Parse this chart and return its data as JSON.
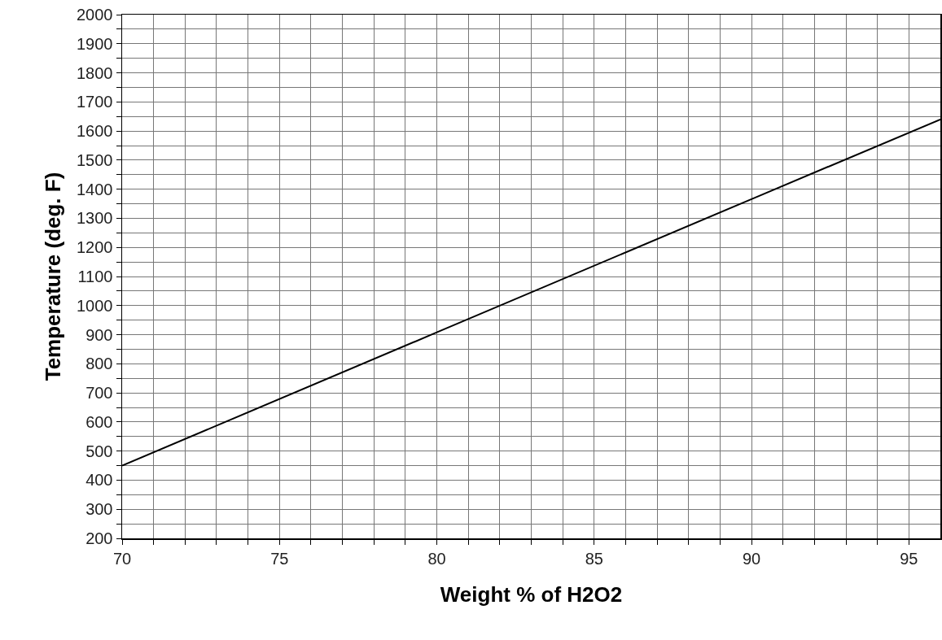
{
  "chart_data": {
    "type": "line",
    "xlabel": "Weight % of H2O2",
    "ylabel": "Temperature (deg. F)",
    "x": [
      70,
      80,
      90,
      96
    ],
    "series": [
      {
        "color": "#000000",
        "values": [
          450,
          908,
          1366,
          1640
        ]
      }
    ],
    "xlim": [
      70,
      96
    ],
    "xticks": [
      70,
      {
        "value": 71,
        "label": null
      },
      {
        "value": 72,
        "label": null
      },
      {
        "value": 73,
        "label": null
      },
      {
        "value": 74,
        "label": null
      },
      75,
      {
        "value": 76,
        "label": null
      },
      {
        "value": 77,
        "label": null
      },
      {
        "value": 78,
        "label": null
      },
      {
        "value": 79,
        "label": null
      },
      80,
      {
        "value": 81,
        "label": null
      },
      {
        "value": 82,
        "label": null
      },
      {
        "value": 83,
        "label": null
      },
      {
        "value": 84,
        "label": null
      },
      85,
      {
        "value": 86,
        "label": null
      },
      {
        "value": 87,
        "label": null
      },
      {
        "value": 88,
        "label": null
      },
      {
        "value": 89,
        "label": null
      },
      90,
      {
        "value": 91,
        "label": null
      },
      {
        "value": 92,
        "label": null
      },
      {
        "value": 93,
        "label": null
      },
      {
        "value": 94,
        "label": null
      },
      95
    ],
    "ylim": [
      200,
      2000
    ],
    "yticks": [
      200,
      {
        "value": 250,
        "label": null
      },
      300,
      {
        "value": 350,
        "label": null
      },
      400,
      {
        "value": 450,
        "label": null
      },
      500,
      {
        "value": 550,
        "label": null
      },
      600,
      {
        "value": 650,
        "label": null
      },
      700,
      {
        "value": 750,
        "label": null
      },
      800,
      {
        "value": 850,
        "label": null
      },
      900,
      {
        "value": 950,
        "label": null
      },
      1000,
      {
        "value": 1050,
        "label": null
      },
      1100,
      {
        "value": 1150,
        "label": null
      },
      1200,
      {
        "value": 1250,
        "label": null
      },
      1300,
      {
        "value": 1350,
        "label": null
      },
      1400,
      {
        "value": 1450,
        "label": null
      },
      1500,
      {
        "value": 1550,
        "label": null
      },
      1600,
      {
        "value": 1650,
        "label": null
      },
      1700,
      {
        "value": 1750,
        "label": null
      },
      1800,
      {
        "value": 1850,
        "label": null
      },
      1900,
      {
        "value": 1950,
        "label": null
      },
      2000
    ],
    "grid": true,
    "marker": "none",
    "line_style": "solid"
  }
}
